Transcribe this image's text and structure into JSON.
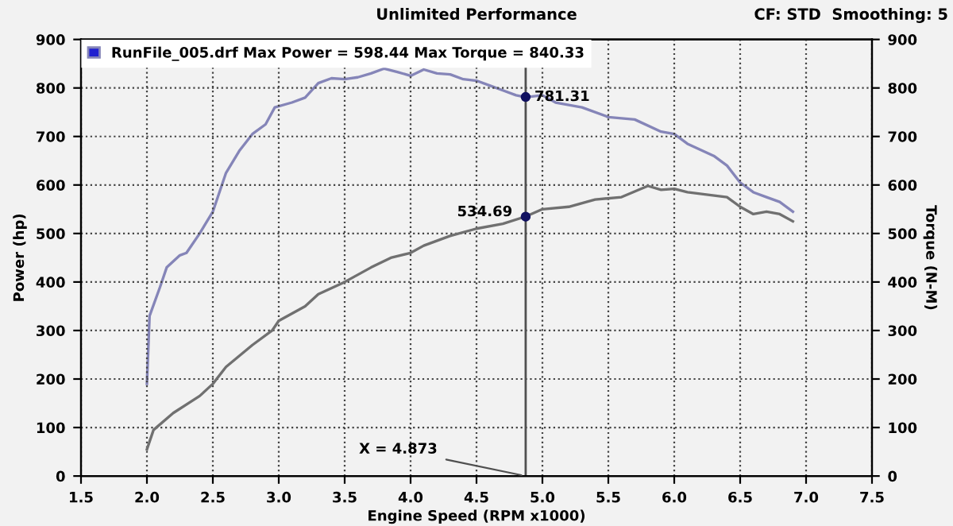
{
  "chart_data": {
    "type": "line",
    "title": "Unlimited Performance",
    "xlabel": "Engine Speed (RPM x1000)",
    "ylabel": "Power (hp)",
    "y2label": "Torque (N-M)",
    "xlim": [
      1.5,
      7.5
    ],
    "xticks": [
      {
        "value": 1.5,
        "label": "1.5"
      },
      {
        "value": 2,
        "label": "2.0"
      },
      {
        "value": 2.5,
        "label": "2.5"
      },
      {
        "value": 3,
        "label": "3.0"
      },
      {
        "value": 3.5,
        "label": "3.5"
      },
      {
        "value": 4,
        "label": "4.0"
      },
      {
        "value": 4.5,
        "label": "4.5"
      },
      {
        "value": 5,
        "label": "5.0"
      },
      {
        "value": 5.5,
        "label": "5.5"
      },
      {
        "value": 6,
        "label": "6.0"
      },
      {
        "value": 6.5,
        "label": "6.5"
      },
      {
        "value": 7,
        "label": "7.0"
      },
      {
        "value": 7.5,
        "label": "7.5"
      }
    ],
    "ylim": [
      0,
      900
    ],
    "yticks": [
      0,
      100,
      200,
      300,
      400,
      500,
      600,
      700,
      800,
      900
    ],
    "y2lim": [
      0,
      900
    ],
    "y2ticks": [
      0,
      100,
      200,
      300,
      400,
      500,
      600,
      700,
      800,
      900
    ],
    "grid": true,
    "legend": "top left",
    "line_style": "solid",
    "series": [
      {
        "color": "#707070",
        "x": [
          2.0,
          2.05,
          2.2,
          2.4,
          2.5,
          2.6,
          2.8,
          2.95,
          3.0,
          3.2,
          3.3,
          3.5,
          3.7,
          3.85,
          4.0,
          4.1,
          4.3,
          4.5,
          4.7,
          4.873,
          5.0,
          5.2,
          5.4,
          5.6,
          5.8,
          5.9,
          6.0,
          6.1,
          6.4,
          6.5,
          6.6,
          6.7,
          6.8,
          6.9
        ],
        "values": [
          55,
          95,
          130,
          165,
          190,
          225,
          270,
          300,
          320,
          350,
          375,
          400,
          430,
          450,
          460,
          475,
          495,
          510,
          520,
          535,
          550,
          555,
          570,
          575,
          598,
          590,
          592,
          585,
          575,
          555,
          540,
          545,
          540,
          525
        ]
      },
      {
        "axis": "y2",
        "name": "RunFile_005.drf Max Power = 598.44 Max Torque = 840.33",
        "color": "#8585b8",
        "x": [
          2.0,
          2.02,
          2.1,
          2.15,
          2.25,
          2.3,
          2.4,
          2.5,
          2.6,
          2.7,
          2.8,
          2.9,
          2.97,
          3.1,
          3.2,
          3.3,
          3.4,
          3.5,
          3.6,
          3.7,
          3.8,
          3.9,
          4.0,
          4.1,
          4.2,
          4.3,
          4.4,
          4.5,
          4.6,
          4.7,
          4.8,
          4.873,
          5.0,
          5.1,
          5.3,
          5.5,
          5.7,
          5.9,
          6.0,
          6.1,
          6.3,
          6.4,
          6.5,
          6.6,
          6.7,
          6.8,
          6.9
        ],
        "values": [
          190,
          330,
          390,
          430,
          455,
          460,
          500,
          545,
          625,
          670,
          705,
          725,
          760,
          770,
          780,
          810,
          820,
          818,
          822,
          830,
          840,
          833,
          825,
          838,
          830,
          828,
          818,
          815,
          805,
          795,
          785,
          781,
          785,
          770,
          760,
          740,
          735,
          710,
          705,
          685,
          660,
          640,
          605,
          585,
          575,
          565,
          545
        ]
      }
    ],
    "ref_lines": [
      {
        "axis": "x",
        "value": 4.873,
        "label": "X = 4.873",
        "color": "#505050"
      }
    ],
    "annotations": [
      {
        "text": "534.69",
        "x": 4.873,
        "y": 534.69
      },
      {
        "text": "781.31",
        "x": 4.873,
        "y": 781.31
      },
      "CF: STD  Smoothing: 5"
    ]
  }
}
